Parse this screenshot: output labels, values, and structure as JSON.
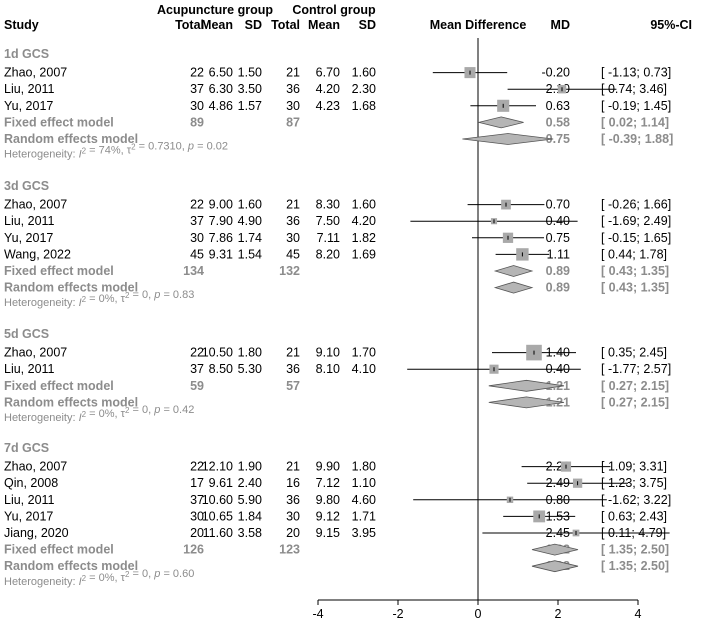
{
  "chart_data": {
    "type": "forest",
    "header": {
      "study": "Study",
      "acu_group": "Acupuncture group",
      "ctrl_group": "Control group",
      "total": "Total",
      "mean": "Mean",
      "sd": "SD",
      "effect": "Mean Difference",
      "md": "MD",
      "ci": "95%-CI"
    },
    "xaxis": {
      "min": -4,
      "max": 4,
      "ticks": [
        -4,
        -2,
        0,
        2,
        4
      ],
      "tick_labels": [
        "-4",
        "-2",
        "0",
        "2",
        "4"
      ]
    },
    "subgroups": [
      {
        "title": "1d GCS",
        "studies": [
          {
            "name": "Zhao, 2007",
            "e_total": "22",
            "e_mean": "6.50",
            "e_sd": "1.50",
            "c_total": "21",
            "c_mean": "6.70",
            "c_sd": "1.60",
            "md_text": "-0.20",
            "ci_text": "[ -1.13; 0.73]",
            "md": -0.2,
            "lo": -1.13,
            "hi": 0.73,
            "w": 0.33
          },
          {
            "name": "Liu, 2011",
            "e_total": "37",
            "e_mean": "6.30",
            "e_sd": "3.50",
            "c_total": "36",
            "c_mean": "4.20",
            "c_sd": "2.30",
            "md_text": "2.10",
            "ci_text": "[ 0.74; 3.46]",
            "md": 2.1,
            "lo": 0.74,
            "hi": 3.46,
            "w": 0.15
          },
          {
            "name": "Yu, 2017",
            "e_total": "30",
            "e_mean": "4.86",
            "e_sd": "1.57",
            "c_total": "30",
            "c_mean": "4.23",
            "c_sd": "1.68",
            "md_text": "0.63",
            "ci_text": "[ -0.19; 1.45]",
            "md": 0.63,
            "lo": -0.19,
            "hi": 1.45,
            "w": 0.42
          }
        ],
        "fixed": {
          "label": "Fixed effect model",
          "e_total": "89",
          "c_total": "87",
          "md_text": "0.58",
          "ci_text": "[ 0.02; 1.14]",
          "md": 0.58,
          "lo": 0.02,
          "hi": 1.14
        },
        "random": {
          "label": "Random effects model",
          "md_text": "0.75",
          "ci_text": "[ -0.39; 1.88]",
          "md": 0.75,
          "lo": -0.39,
          "hi": 1.88
        },
        "het": {
          "prefix": "Heterogeneity: ",
          "i2": "74%",
          "tau2": "0.7310",
          "p": "0.02"
        }
      },
      {
        "title": "3d GCS",
        "studies": [
          {
            "name": "Zhao, 2007",
            "e_total": "22",
            "e_mean": "9.00",
            "e_sd": "1.60",
            "c_total": "21",
            "c_mean": "8.30",
            "c_sd": "1.60",
            "md_text": "0.70",
            "ci_text": "[ -0.26; 1.66]",
            "md": 0.7,
            "lo": -0.26,
            "hi": 1.66,
            "w": 0.23
          },
          {
            "name": "Liu, 2011",
            "e_total": "37",
            "e_mean": "7.90",
            "e_sd": "4.90",
            "c_total": "36",
            "c_mean": "7.50",
            "c_sd": "4.20",
            "md_text": "0.40",
            "ci_text": "[ -1.69; 2.49]",
            "md": 0.4,
            "lo": -1.69,
            "hi": 2.49,
            "w": 0.05
          },
          {
            "name": "Yu, 2017",
            "e_total": "30",
            "e_mean": "7.86",
            "e_sd": "1.74",
            "c_total": "30",
            "c_mean": "7.11",
            "c_sd": "1.82",
            "md_text": "0.75",
            "ci_text": "[ -0.15; 1.65]",
            "md": 0.75,
            "lo": -0.15,
            "hi": 1.65,
            "w": 0.27
          },
          {
            "name": "Wang, 2022",
            "e_total": "45",
            "e_mean": "9.31",
            "e_sd": "1.54",
            "c_total": "45",
            "c_mean": "8.20",
            "c_sd": "1.69",
            "md_text": "1.11",
            "ci_text": "[ 0.44; 1.78]",
            "md": 1.11,
            "lo": 0.44,
            "hi": 1.78,
            "w": 0.45
          }
        ],
        "fixed": {
          "label": "Fixed effect model",
          "e_total": "134",
          "c_total": "132",
          "md_text": "0.89",
          "ci_text": "[ 0.43; 1.35]",
          "md": 0.89,
          "lo": 0.43,
          "hi": 1.35
        },
        "random": {
          "label": "Random effects model",
          "md_text": "0.89",
          "ci_text": "[ 0.43; 1.35]",
          "md": 0.89,
          "lo": 0.43,
          "hi": 1.35
        },
        "het": {
          "prefix": "Heterogeneity: ",
          "i2": "0%",
          "tau2": "0",
          "p": "0.83"
        }
      },
      {
        "title": "5d GCS",
        "studies": [
          {
            "name": "Zhao, 2007",
            "e_total": "22",
            "e_mean": "10.50",
            "e_sd": "1.80",
            "c_total": "21",
            "c_mean": "9.10",
            "c_sd": "1.70",
            "md_text": "1.40",
            "ci_text": "[ 0.35; 2.45]",
            "md": 1.4,
            "lo": 0.35,
            "hi": 2.45,
            "w": 0.81
          },
          {
            "name": "Liu, 2011",
            "e_total": "37",
            "e_mean": "8.50",
            "e_sd": "5.30",
            "c_total": "36",
            "c_mean": "8.10",
            "c_sd": "4.10",
            "md_text": "0.40",
            "ci_text": "[ -1.77; 2.57]",
            "md": 0.4,
            "lo": -1.77,
            "hi": 2.57,
            "w": 0.19
          }
        ],
        "fixed": {
          "label": "Fixed effect model",
          "e_total": "59",
          "c_total": "57",
          "md_text": "1.21",
          "ci_text": "[ 0.27; 2.15]",
          "md": 1.21,
          "lo": 0.27,
          "hi": 2.15
        },
        "random": {
          "label": "Random effects model",
          "md_text": "1.21",
          "ci_text": "[ 0.27; 2.15]",
          "md": 1.21,
          "lo": 0.27,
          "hi": 2.15
        },
        "het": {
          "prefix": "Heterogeneity: ",
          "i2": "0%",
          "tau2": "0",
          "p": "0.42"
        }
      },
      {
        "title": "7d GCS",
        "studies": [
          {
            "name": "Zhao, 2007",
            "e_total": "22",
            "e_mean": "12.10",
            "e_sd": "1.90",
            "c_total": "21",
            "c_mean": "9.90",
            "c_sd": "1.80",
            "md_text": "2.20",
            "ci_text": "[ 1.09; 3.31]",
            "md": 2.2,
            "lo": 1.09,
            "hi": 3.31,
            "w": 0.26
          },
          {
            "name": "Qin, 2008",
            "e_total": "17",
            "e_mean": "9.61",
            "e_sd": "2.40",
            "c_total": "16",
            "c_mean": "7.12",
            "c_sd": "1.10",
            "md_text": "2.49",
            "ci_text": "[ 1.23; 3.75]",
            "md": 2.49,
            "lo": 1.23,
            "hi": 3.75,
            "w": 0.2
          },
          {
            "name": "Liu, 2011",
            "e_total": "37",
            "e_mean": "10.60",
            "e_sd": "5.90",
            "c_total": "36",
            "c_mean": "9.80",
            "c_sd": "4.60",
            "md_text": "0.80",
            "ci_text": "[ -1.62; 3.22]",
            "md": 0.8,
            "lo": -1.62,
            "hi": 3.22,
            "w": 0.06
          },
          {
            "name": "Yu, 2017",
            "e_total": "30",
            "e_mean": "10.65",
            "e_sd": "1.84",
            "c_total": "30",
            "c_mean": "9.12",
            "c_sd": "1.71",
            "md_text": "1.53",
            "ci_text": "[ 0.63; 2.43]",
            "md": 1.53,
            "lo": 0.63,
            "hi": 2.43,
            "w": 0.4
          },
          {
            "name": "Jiang, 2020",
            "e_total": "20",
            "e_mean": "11.60",
            "e_sd": "3.58",
            "c_total": "20",
            "c_mean": "9.15",
            "c_sd": "3.95",
            "md_text": "2.45",
            "ci_text": "[ 0.11; 4.79]",
            "md": 2.45,
            "lo": 0.11,
            "hi": 4.79,
            "w": 0.07
          }
        ],
        "fixed": {
          "label": "Fixed effect model",
          "e_total": "126",
          "c_total": "123",
          "md_text": "1.92",
          "ci_text": "[ 1.35; 2.50]",
          "md": 1.92,
          "lo": 1.35,
          "hi": 2.5
        },
        "random": {
          "label": "Random effects model",
          "md_text": "1.92",
          "ci_text": "[ 1.35; 2.50]",
          "md": 1.92,
          "lo": 1.35,
          "hi": 2.5
        },
        "het": {
          "prefix": "Heterogeneity: ",
          "i2": "0%",
          "tau2": "0",
          "p": "0.60"
        }
      }
    ]
  },
  "colors": {
    "text": "#000000",
    "grey_text": "#8c8c8c",
    "square_fill": "#a9a9a9",
    "diamond_fill": "#b5b5b5",
    "line": "#000000"
  }
}
